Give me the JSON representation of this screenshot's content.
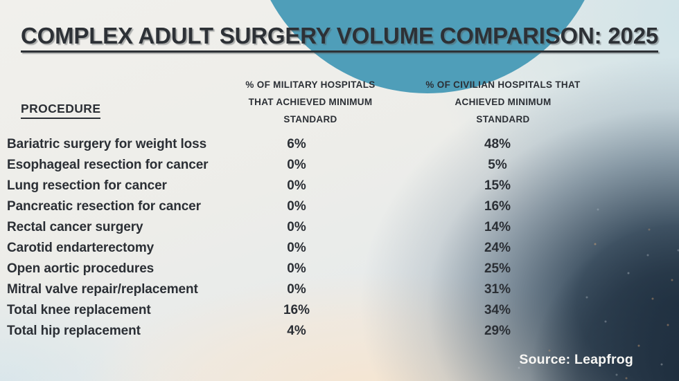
{
  "title": "COMPLEX ADULT SURGERY VOLUME COMPARISON: 2025",
  "table": {
    "procedure_header": "PROCEDURE",
    "military_header": [
      "% OF MILITARY HOSPITALS",
      "THAT ACHIEVED MINIMUM",
      "STANDARD"
    ],
    "civilian_header": [
      "% OF CIVILIAN HOSPITALS THAT",
      "ACHIEVED MINIMUM",
      "STANDARD"
    ],
    "rows": [
      {
        "procedure": "Bariatric surgery for weight loss",
        "military": "6%",
        "civilian": "48%"
      },
      {
        "procedure": "Esophageal resection for cancer",
        "military": "0%",
        "civilian": "5%"
      },
      {
        "procedure": "Lung resection for cancer",
        "military": "0%",
        "civilian": "15%"
      },
      {
        "procedure": "Pancreatic resection for cancer",
        "military": "0%",
        "civilian": "16%"
      },
      {
        "procedure": "Rectal cancer surgery",
        "military": "0%",
        "civilian": "14%"
      },
      {
        "procedure": "Carotid endarterectomy",
        "military": "0%",
        "civilian": "24%"
      },
      {
        "procedure": "Open aortic procedures",
        "military": "0%",
        "civilian": "25%"
      },
      {
        "procedure": "Mitral valve repair/replacement",
        "military": "0%",
        "civilian": "31%"
      },
      {
        "procedure": "Total knee replacement",
        "military": "16%",
        "civilian": "34%"
      },
      {
        "procedure": "Total hip replacement",
        "military": "4%",
        "civilian": "29%"
      }
    ]
  },
  "source": "Source: Leapfrog",
  "colors": {
    "accent_circle": "#4f9eb9",
    "text_dark": "#2b2f35",
    "dark_photo_corner": "#243a4e",
    "peach_glow": "#f7e5cf",
    "source_text": "#f8f7f4"
  },
  "chart_data": {
    "type": "table",
    "title": "COMPLEX ADULT SURGERY VOLUME COMPARISON: 2025",
    "categories": [
      "Bariatric surgery for weight loss",
      "Esophageal resection for cancer",
      "Lung resection for cancer",
      "Pancreatic resection for cancer",
      "Rectal cancer surgery",
      "Carotid endarterectomy",
      "Open aortic procedures",
      "Mitral valve repair/replacement",
      "Total knee replacement",
      "Total hip replacement"
    ],
    "series": [
      {
        "name": "% of military hospitals that achieved minimum standard",
        "values": [
          6,
          0,
          0,
          0,
          0,
          0,
          0,
          0,
          16,
          4
        ]
      },
      {
        "name": "% of civilian hospitals that achieved minimum standard",
        "values": [
          48,
          5,
          15,
          16,
          14,
          24,
          25,
          31,
          34,
          29
        ]
      }
    ],
    "unit": "percent",
    "source": "Leapfrog"
  }
}
